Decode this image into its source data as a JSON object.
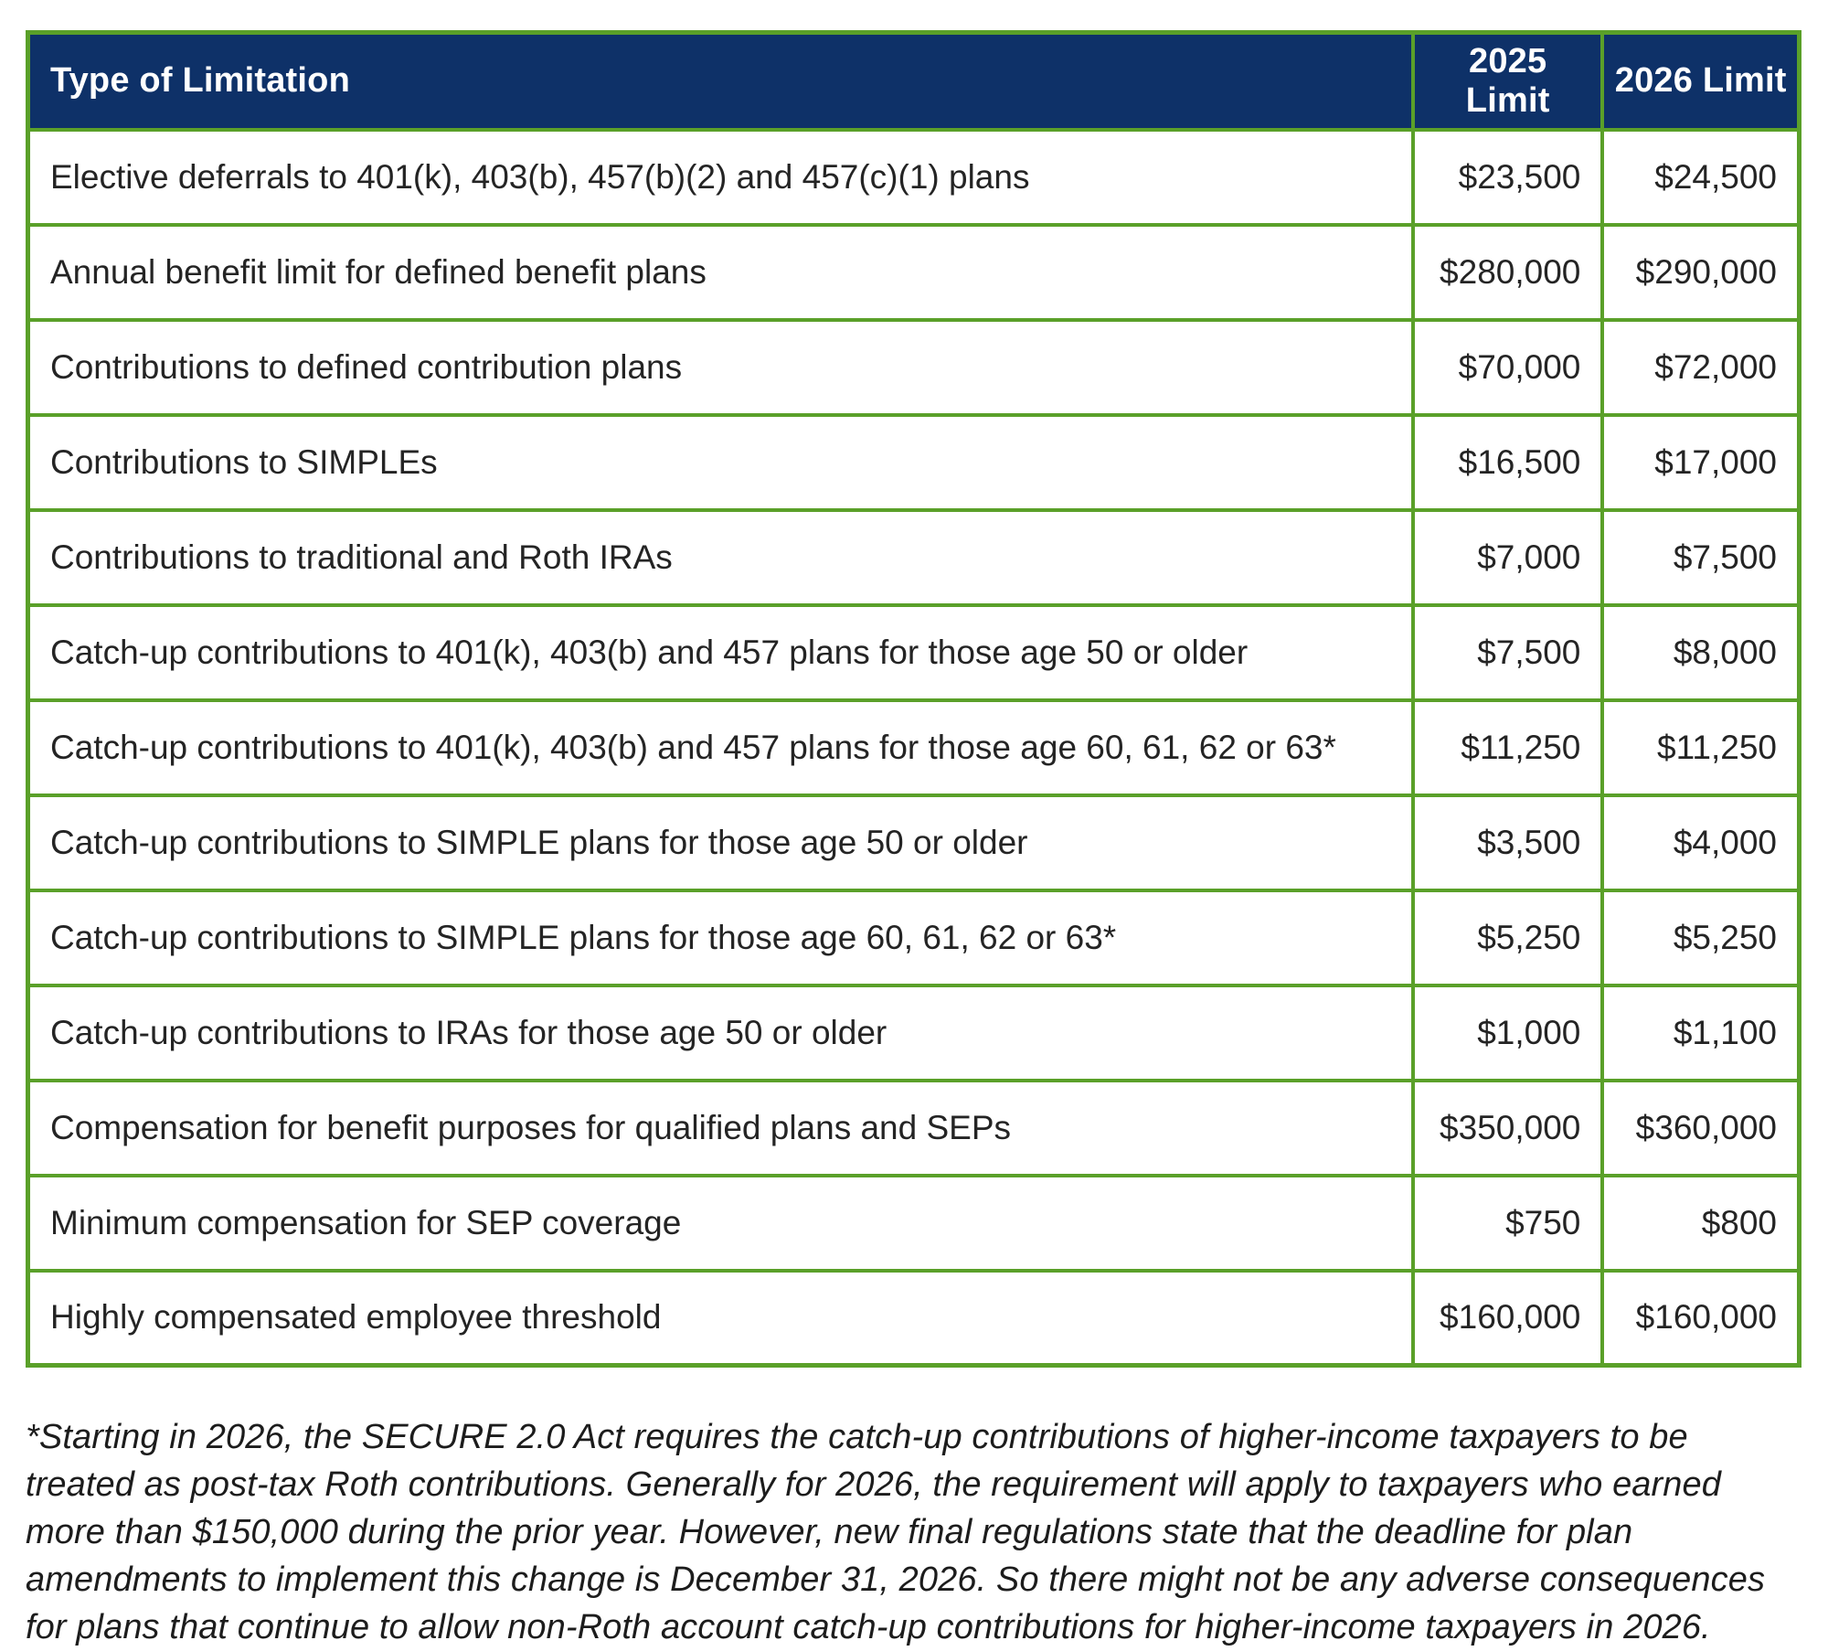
{
  "table": {
    "header": {
      "type_col": "Type of Limitation",
      "limit_2025_col": "2025 Limit",
      "limit_2026_col": "2026 Limit"
    },
    "rows": [
      {
        "label": "Elective deferrals to 401(k), 403(b), 457(b)(2) and 457(c)(1) plans",
        "limit_2025": "$23,500",
        "limit_2026": "$24,500"
      },
      {
        "label": "Annual benefit limit for defined benefit plans",
        "limit_2025": "$280,000",
        "limit_2026": "$290,000"
      },
      {
        "label": "Contributions to defined contribution plans",
        "limit_2025": "$70,000",
        "limit_2026": "$72,000"
      },
      {
        "label": "Contributions to SIMPLEs",
        "limit_2025": "$16,500",
        "limit_2026": "$17,000"
      },
      {
        "label": "Contributions to traditional and Roth IRAs",
        "limit_2025": "$7,000",
        "limit_2026": "$7,500"
      },
      {
        "label": "Catch-up contributions to 401(k), 403(b) and 457 plans for those age 50 or older",
        "limit_2025": "$7,500",
        "limit_2026": "$8,000"
      },
      {
        "label": "Catch-up contributions to 401(k), 403(b) and 457 plans for those age 60, 61, 62 or 63*",
        "limit_2025": "$11,250",
        "limit_2026": "$11,250"
      },
      {
        "label": "Catch-up contributions to SIMPLE plans for those age 50 or older",
        "limit_2025": "$3,500",
        "limit_2026": "$4,000"
      },
      {
        "label": "Catch-up contributions to SIMPLE plans for those age 60, 61, 62 or 63*",
        "limit_2025": "$5,250",
        "limit_2026": "$5,250"
      },
      {
        "label": "Catch-up contributions to IRAs for those age 50 or older",
        "limit_2025": "$1,000",
        "limit_2026": "$1,100"
      },
      {
        "label": "Compensation for benefit purposes for qualified plans and SEPs",
        "limit_2025": "$350,000",
        "limit_2026": "$360,000"
      },
      {
        "label": "Minimum compensation for SEP coverage",
        "limit_2025": "$750",
        "limit_2026": "$800"
      },
      {
        "label": "Highly compensated employee threshold",
        "limit_2025": "$160,000",
        "limit_2026": "$160,000"
      }
    ]
  },
  "footnote": "*Starting in 2026, the SECURE 2.0 Act requires the catch-up contributions of higher-income taxpayers to be treated as post-tax Roth contributions. Generally for 2026, the requirement will apply to taxpayers who earned more than $150,000 during the prior year. However, new final regulations state that the deadline for plan amendments to implement this change is December 31, 2026. So there might not be any adverse consequences for plans that continue to allow non-Roth account catch-up contributions for higher-income taxpayers in 2026.",
  "colors": {
    "header_background": "#0e3168",
    "border_green": "#5aa029",
    "body_text": "#242424"
  }
}
